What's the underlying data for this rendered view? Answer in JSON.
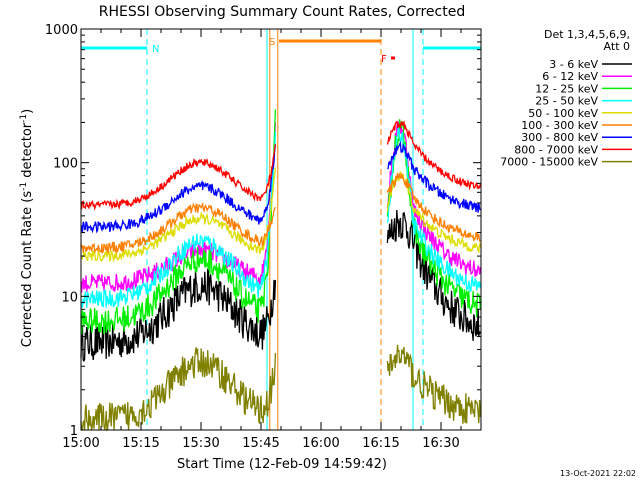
{
  "chart_data": {
    "type": "line",
    "title": "RHESSI Observing Summary Count Rates, Corrected",
    "xlabel": "Start Time (12-Feb-09 14:59:42)",
    "ylabel": "Corrected Count Rate (s",
    "ylabel_sup1": "-1",
    "ylabel_mid": " detector",
    "ylabel_sup2": "-1",
    "ylabel_end": ")",
    "y_scale": "log",
    "ylim": [
      1,
      1000
    ],
    "xlim_minutes": [
      0,
      100
    ],
    "x_ticks": [
      {
        "label": "15:00",
        "min": 0
      },
      {
        "label": "15:15",
        "min": 15
      },
      {
        "label": "15:30",
        "min": 30
      },
      {
        "label": "15:45",
        "min": 45
      },
      {
        "label": "16:00",
        "min": 60
      },
      {
        "label": "16:15",
        "min": 75
      },
      {
        "label": "16:30",
        "min": 90
      }
    ],
    "y_ticks": [
      {
        "label": "1",
        "value": 1
      },
      {
        "label": "10",
        "value": 10
      },
      {
        "label": "100",
        "value": 100
      },
      {
        "label": "1000",
        "value": 1000
      }
    ],
    "legend_header": [
      "Det 1,3,4,5,6,9,",
      "Att 0"
    ],
    "legend_placement": "right",
    "series": [
      {
        "name": "3 - 6 keV",
        "color": "#000000",
        "pre_edge": 4.5,
        "pre_peak": 12,
        "spike": 14,
        "post_peak": 26,
        "post_end": 4.5,
        "noise": 0.14
      },
      {
        "name": "6 - 12 keV",
        "color": "#ff00ff",
        "pre_edge": 12.5,
        "pre_peak": 22,
        "spike": 210,
        "post_peak": 46,
        "post_end": 12.5,
        "noise": 0.07
      },
      {
        "name": "12 - 25 keV",
        "color": "#00ee00",
        "pre_edge": 6.5,
        "pre_peak": 19,
        "spike": 200,
        "post_peak": 33,
        "post_end": 6.5,
        "noise": 0.1
      },
      {
        "name": "25 - 50 keV",
        "color": "#00ffff",
        "pre_edge": 9.5,
        "pre_peak": 26,
        "spike": 180,
        "post_peak": 36,
        "post_end": 9.5,
        "noise": 0.07
      },
      {
        "name": "50 - 100 keV",
        "color": "#dddd00",
        "pre_edge": 20,
        "pre_peak": 38,
        "spike": 90,
        "post_peak": 46,
        "post_end": 20,
        "noise": 0.04
      },
      {
        "name": "100 - 300 keV",
        "color": "#ff8000",
        "pre_edge": 23,
        "pre_peak": 46,
        "spike": 50,
        "post_peak": 56,
        "post_end": 24,
        "noise": 0.04
      },
      {
        "name": "300 - 800 keV",
        "color": "#0000ff",
        "pre_edge": 33,
        "pre_peak": 66,
        "spike": 130,
        "post_peak": 92,
        "post_end": 40,
        "noise": 0.04
      },
      {
        "name": "800 - 7000 keV",
        "color": "#ff0000",
        "pre_edge": 48,
        "pre_peak": 100,
        "spike": 130,
        "post_peak": 140,
        "post_end": 57,
        "noise": 0.03
      },
      {
        "name": "7000 - 15000 keV",
        "color": "#808000",
        "pre_edge": 1.2,
        "pre_peak": 3.2,
        "spike": 3,
        "post_peak": 2.6,
        "post_end": 1.2,
        "noise": 0.12
      }
    ],
    "flag_bars": [
      {
        "label": "N",
        "color": "#00ffff",
        "segments": [
          [
            0,
            16.5
          ],
          [
            85.5,
            100
          ]
        ]
      },
      {
        "label": "S",
        "color": "#ff8000",
        "segments": [
          [
            49.5,
            75
          ]
        ]
      },
      {
        "label": "F",
        "color": "#ff0000",
        "segments": [
          [
            77.5,
            78.5
          ]
        ]
      }
    ],
    "vertical_lines": [
      {
        "min": 16.5,
        "color": "#00ffff",
        "style": "dashed"
      },
      {
        "min": 46.5,
        "color": "#00ffff",
        "style": "solid"
      },
      {
        "min": 47.2,
        "color": "#ff8000",
        "style": "solid"
      },
      {
        "min": 49.2,
        "color": "#ff8000",
        "style": "solid"
      },
      {
        "min": 75,
        "color": "#ff8000",
        "style": "dashed"
      },
      {
        "min": 83,
        "color": "#00ffff",
        "style": "solid"
      },
      {
        "min": 85.5,
        "color": "#00ffff",
        "style": "dashed"
      },
      {
        "min": 100,
        "color": "#00ffff",
        "style": "dashed"
      }
    ],
    "gap_minutes": [
      48.6,
      76.6
    ],
    "grid": false
  },
  "footer_date": "13-Oct-2021 22:02"
}
